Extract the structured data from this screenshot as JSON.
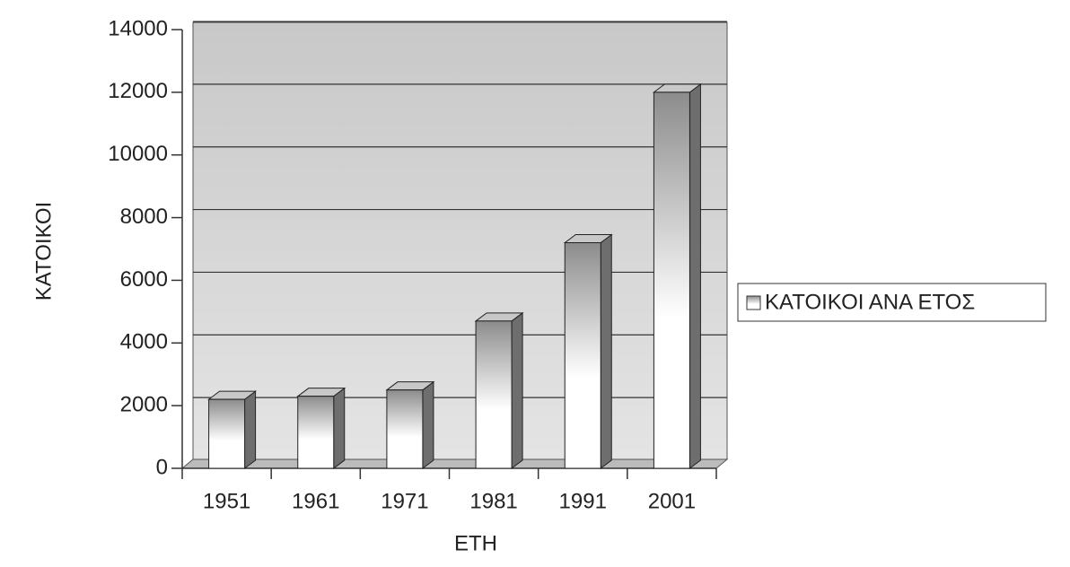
{
  "chart_data": {
    "type": "bar",
    "categories": [
      "1951",
      "1961",
      "1971",
      "1981",
      "1991",
      "2001"
    ],
    "series": [
      {
        "name": "ΚΑΤΟΙΚΟΙ ΑΝΑ ΕΤΟΣ",
        "color": "#8a8a8a",
        "values": [
          2200,
          2300,
          2500,
          4700,
          7200,
          12000
        ]
      }
    ],
    "xlabel": "ΕΤΗ",
    "ylabel": "ΚΑΤΟΙΚΟΙ",
    "ylim": [
      0,
      14000
    ],
    "yticks": [
      0,
      2000,
      4000,
      6000,
      8000,
      10000,
      12000,
      14000
    ],
    "grid": true,
    "legend": "right"
  }
}
